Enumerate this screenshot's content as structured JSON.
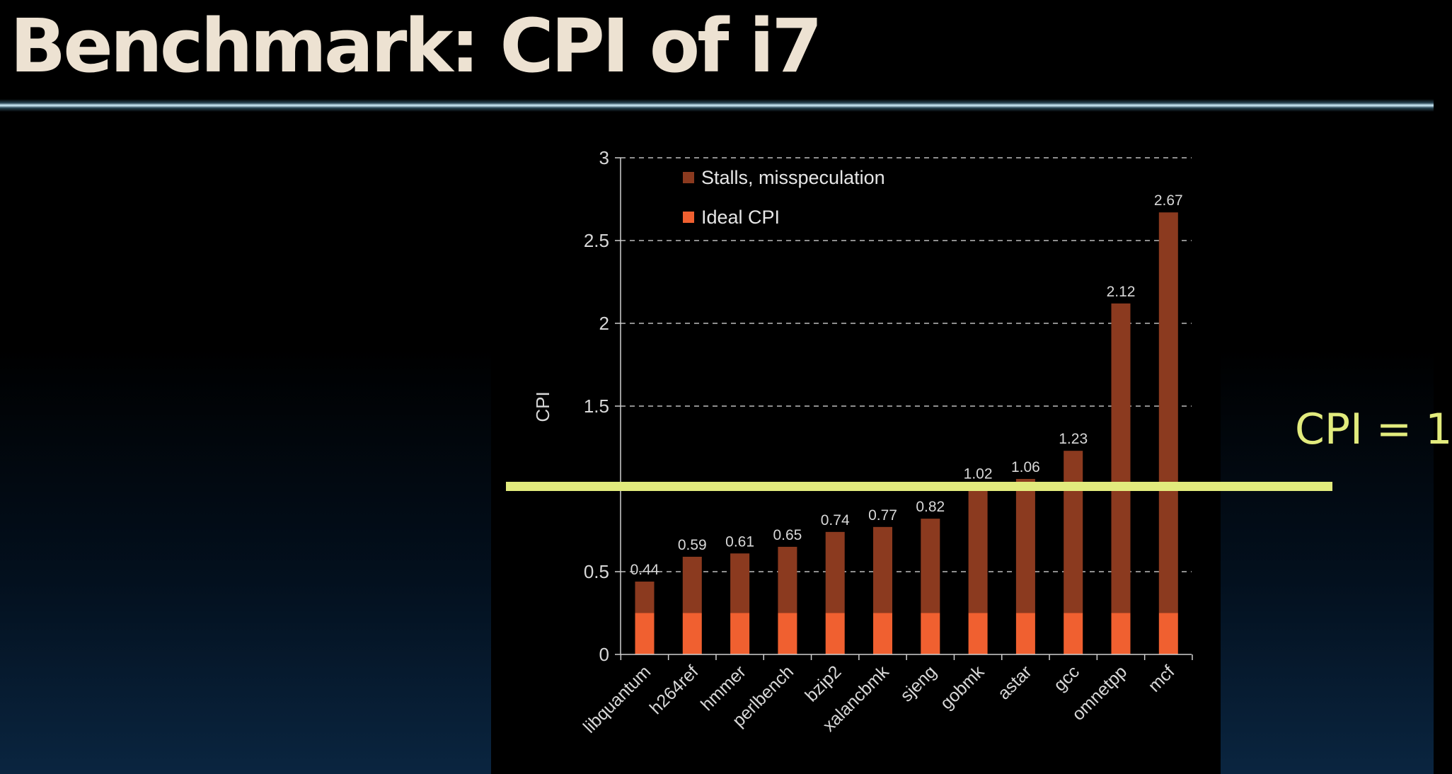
{
  "slide": {
    "title": "Benchmark: CPI of i7",
    "highlight_label": "CPI = 1",
    "highlight_value": 1
  },
  "colors": {
    "stall": "#8b3a1f",
    "ideal": "#f06030",
    "highlight": "#e2eb7d",
    "title": "#ede2d2",
    "axis_text": "#d8d8d8"
  },
  "chart_data": {
    "type": "bar",
    "stacked": true,
    "ylabel": "CPI",
    "ylim": [
      0,
      3
    ],
    "yticks": [
      "0",
      "0.5",
      "",
      "1.5",
      "2",
      "2.5",
      "3"
    ],
    "ytick_values": [
      0,
      0.5,
      1,
      1.5,
      2,
      2.5,
      3
    ],
    "grid": "horizontal dashed",
    "legend_position": "top-left",
    "categories": [
      "libquantum",
      "h264ref",
      "hmmer",
      "perlbench",
      "bzip2",
      "xalancbmk",
      "sjeng",
      "gobmk",
      "astar",
      "gcc",
      "omnetpp",
      "mcf"
    ],
    "totals": [
      0.44,
      0.59,
      0.61,
      0.65,
      0.74,
      0.77,
      0.82,
      1.02,
      1.06,
      1.23,
      2.12,
      2.67
    ],
    "total_labels": [
      "0.44",
      "0.59",
      "0.61",
      "0.65",
      "0.74",
      "0.77",
      "0.82",
      "1.02",
      "1.06",
      "1.23",
      "2.12",
      "2.67"
    ],
    "series": [
      {
        "name": "Ideal CPI",
        "values": [
          0.25,
          0.25,
          0.25,
          0.25,
          0.25,
          0.25,
          0.25,
          0.25,
          0.25,
          0.25,
          0.25,
          0.25
        ]
      },
      {
        "name": "Stalls, misspeculation",
        "values": [
          0.19,
          0.34,
          0.36,
          0.4,
          0.49,
          0.52,
          0.57,
          0.77,
          0.81,
          0.98,
          1.87,
          2.42
        ]
      }
    ],
    "legend": [
      {
        "name": "Stalls, misspeculation"
      },
      {
        "name": "Ideal CPI"
      }
    ]
  }
}
